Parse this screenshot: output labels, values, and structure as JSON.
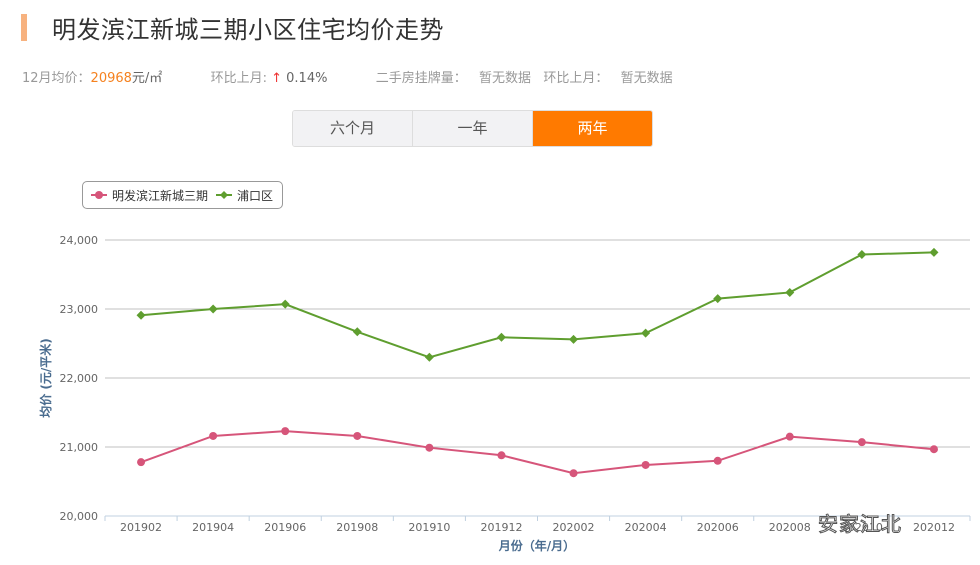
{
  "header": {
    "title": "明发滨江新城三期小区住宅均价走势"
  },
  "stats": {
    "avg_label": "12月均价：",
    "avg_value": "20968",
    "avg_unit": "元/㎡",
    "mom_label": "环比上月:",
    "mom_arrow": "↑",
    "mom_value": "0.14%",
    "listing_label": "二手房挂牌量：",
    "listing_value": "暂无数据",
    "listing_mom_label": "环比上月：",
    "listing_mom_value": "暂无数据"
  },
  "tabs": [
    {
      "label": "六个月",
      "active": false
    },
    {
      "label": "一年",
      "active": false
    },
    {
      "label": "两年",
      "active": true
    }
  ],
  "colors": {
    "accent": "#ff7a00",
    "price": "#f58220",
    "series_community": "#d6557a",
    "series_district": "#5f9e2f",
    "axis_title": "#4a6c8f"
  },
  "watermark": "安家江北",
  "chart_data": {
    "type": "line",
    "title": "明发滨江新城三期小区住宅均价走势",
    "xlabel": "月份（年/月）",
    "ylabel": "均价 (元/平米)",
    "ylim": [
      20000,
      24000
    ],
    "yticks": [
      "20,000",
      "21,000",
      "22,000",
      "23,000",
      "24,000"
    ],
    "grid": true,
    "legend_position": "top-left",
    "categories": [
      "201902",
      "201904",
      "201906",
      "201908",
      "201910",
      "201912",
      "202002",
      "202004",
      "202006",
      "202008",
      "202010",
      "202012"
    ],
    "series": [
      {
        "name": "明发滨江新城三期",
        "color": "#d6557a",
        "marker": "circle",
        "values": [
          20780,
          21160,
          21230,
          21160,
          20990,
          20880,
          20620,
          20740,
          20800,
          21150,
          21070,
          20968
        ]
      },
      {
        "name": "浦口区",
        "color": "#5f9e2f",
        "marker": "diamond",
        "values": [
          22910,
          23000,
          23070,
          22670,
          22300,
          22590,
          22560,
          22650,
          23150,
          23240,
          23790,
          23820
        ]
      }
    ]
  }
}
